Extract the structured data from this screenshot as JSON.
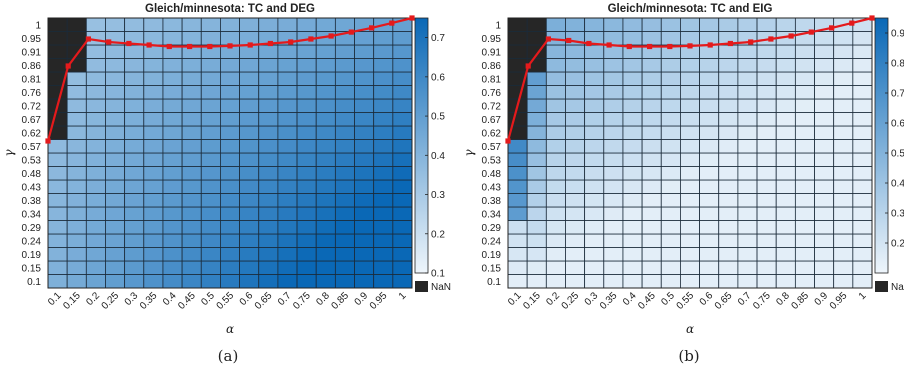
{
  "chart_data": [
    {
      "type": "heatmap",
      "title": "Gleich/minnesota: TC and DEG",
      "subfigure_label": "(a)",
      "xlabel": "α",
      "ylabel": "γ",
      "x_tick_labels": [
        "0.1",
        "0.15",
        "0.2",
        "0.25",
        "0.3",
        "0.35",
        "0.4",
        "0.45",
        "0.5",
        "0.55",
        "0.6",
        "0.65",
        "0.7",
        "0.75",
        "0.8",
        "0.85",
        "0.9",
        "0.95",
        "1"
      ],
      "y_tick_labels": [
        "0.1",
        "0.15",
        "0.19",
        "0.24",
        "0.29",
        "0.34",
        "0.38",
        "0.43",
        "0.48",
        "0.53",
        "0.57",
        "0.62",
        "0.67",
        "0.72",
        "0.76",
        "0.81",
        "0.86",
        "0.91",
        "0.95",
        "1"
      ],
      "colorbar": {
        "min": 0.1,
        "max": 0.75,
        "ticks": [
          "0.1",
          "0.2",
          "0.3",
          "0.4",
          "0.5",
          "0.6",
          "0.7"
        ],
        "nan_label": "NaN"
      },
      "colors": {
        "low": "#eef5fb",
        "high": "#0a68b6",
        "nan": "#262626",
        "line": "#e41a1c"
      },
      "nan_cells": {
        "col_0_from_row": 11,
        "col_1_from_row": 16
      },
      "line": {
        "x": [
          0.1,
          0.15,
          0.2,
          0.25,
          0.3,
          0.35,
          0.4,
          0.45,
          0.5,
          0.55,
          0.6,
          0.65,
          0.7,
          0.75,
          0.8,
          0.85,
          0.9,
          0.95,
          1
        ],
        "y": [
          0.59,
          0.84,
          0.93,
          0.92,
          0.915,
          0.91,
          0.905,
          0.905,
          0.905,
          0.907,
          0.91,
          0.915,
          0.92,
          0.93,
          0.94,
          0.953,
          0.967,
          0.983,
          1.0
        ]
      }
    },
    {
      "type": "heatmap",
      "title": "Gleich/minnesota: TC and EIG",
      "subfigure_label": "(b)",
      "xlabel": "α",
      "ylabel": "γ",
      "x_tick_labels": [
        "0.1",
        "0.15",
        "0.2",
        "0.25",
        "0.3",
        "0.35",
        "0.4",
        "0.45",
        "0.5",
        "0.55",
        "0.6",
        "0.65",
        "0.7",
        "0.75",
        "0.8",
        "0.85",
        "0.9",
        "0.95",
        "1"
      ],
      "y_tick_labels": [
        "0.1",
        "0.15",
        "0.19",
        "0.24",
        "0.29",
        "0.34",
        "0.38",
        "0.43",
        "0.48",
        "0.53",
        "0.57",
        "0.62",
        "0.67",
        "0.72",
        "0.76",
        "0.81",
        "0.86",
        "0.91",
        "0.95",
        "1"
      ],
      "colorbar": {
        "min": 0.1,
        "max": 0.95,
        "ticks": [
          "0.2",
          "0.3",
          "0.4",
          "0.5",
          "0.6",
          "0.7",
          "0.8",
          "0.9"
        ],
        "nan_label": "NaN"
      },
      "colors": {
        "low": "#eef5fb",
        "high": "#0a68b6",
        "nan": "#262626",
        "line": "#e41a1c"
      },
      "nan_cells": {
        "col_0_from_row": 11,
        "col_1_from_row": 16
      },
      "line": {
        "x": [
          0.1,
          0.15,
          0.2,
          0.25,
          0.3,
          0.35,
          0.4,
          0.45,
          0.5,
          0.55,
          0.6,
          0.65,
          0.7,
          0.75,
          0.8,
          0.85,
          0.9,
          0.95,
          1
        ],
        "y": [
          0.59,
          0.84,
          0.93,
          0.925,
          0.915,
          0.91,
          0.905,
          0.905,
          0.905,
          0.907,
          0.91,
          0.915,
          0.92,
          0.93,
          0.94,
          0.953,
          0.967,
          0.983,
          1.0
        ]
      }
    }
  ]
}
